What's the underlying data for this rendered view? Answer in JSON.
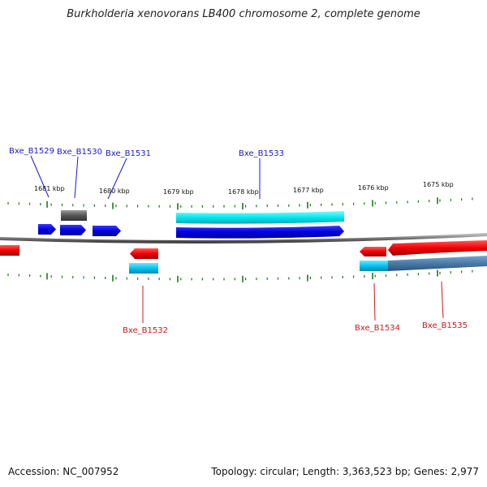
{
  "title": "Burkholderia xenovorans LB400 chromosome 2, complete genome",
  "footer": {
    "accession": "Accession: NC_007952",
    "summary": "Topology: circular; Length: 3,363,523 bp; Genes: 2,977"
  },
  "scale": {
    "ticks": [
      {
        "kbp": 1681,
        "label": "1681 kbp"
      },
      {
        "kbp": 1680,
        "label": "1680 kbp"
      },
      {
        "kbp": 1679,
        "label": "1679 kbp"
      },
      {
        "kbp": 1678,
        "label": "1678 kbp"
      },
      {
        "kbp": 1677,
        "label": "1677 kbp"
      },
      {
        "kbp": 1676,
        "label": "1676 kbp"
      },
      {
        "kbp": 1675,
        "label": "1675 kbp"
      }
    ]
  },
  "genes": [
    {
      "label": "Bxe_B1529",
      "strand": "forward"
    },
    {
      "label": "Bxe_B1530",
      "strand": "forward"
    },
    {
      "label": "Bxe_B1531",
      "strand": "forward"
    },
    {
      "label": "Bxe_B1533",
      "strand": "forward"
    },
    {
      "label": "Bxe_B1532",
      "strand": "reverse"
    },
    {
      "label": "Bxe_B1534",
      "strand": "reverse"
    },
    {
      "label": "Bxe_B1535",
      "strand": "reverse"
    }
  ],
  "colors": {
    "forward_gene": "#0000e0",
    "forward_cds": "#00e0e8",
    "reverse_gene": "#f00000",
    "reverse_cds": "#00c8f0",
    "other_feature": "#555555",
    "backbone": "#888888",
    "tick": "#1a7a1a",
    "gene_label_forward": "#1a1acc",
    "gene_label_reverse": "#cc1a1a"
  }
}
